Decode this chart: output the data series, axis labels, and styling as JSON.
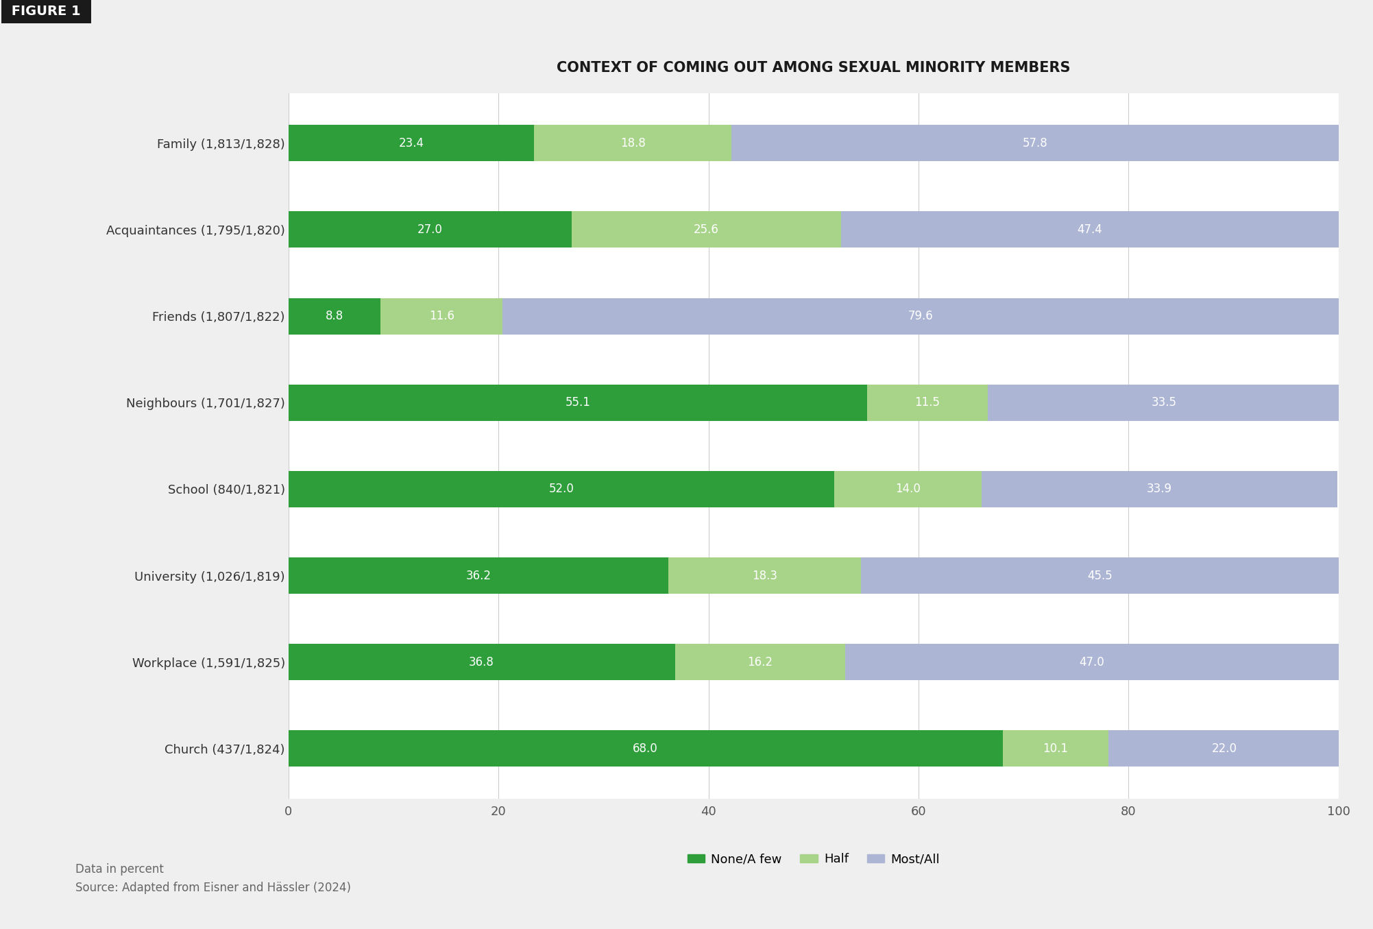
{
  "title": "CONTEXT OF COMING OUT AMONG SEXUAL MINORITY MEMBERS",
  "figure_label": "FIGURE 1",
  "categories": [
    "Family (1,813/1,828)",
    "Acquaintances (1,795/1,820)",
    "Friends (1,807/1,822)",
    "Neighbours (1,701/1,827)",
    "School (840/1,821)",
    "University (1,026/1,819)",
    "Workplace (1,591/1,825)",
    "Church (437/1,824)"
  ],
  "none_few": [
    23.4,
    27.0,
    8.8,
    55.1,
    52.0,
    36.2,
    36.8,
    68.0
  ],
  "half": [
    18.8,
    25.6,
    11.6,
    11.5,
    14.0,
    18.3,
    16.2,
    10.1
  ],
  "most_all": [
    57.8,
    47.4,
    79.6,
    33.5,
    33.9,
    45.5,
    47.0,
    22.0
  ],
  "color_none_few": "#2e9e3b",
  "color_half": "#a8d48a",
  "color_most_all": "#adb5d4",
  "legend_labels": [
    "None/A few",
    "Half",
    "Most/All"
  ],
  "footnote_line1": "Data in percent",
  "footnote_line2": "Source: Adapted from Eisner and Hässler (2024)",
  "xlim": [
    0,
    100
  ],
  "xticks": [
    0,
    20,
    40,
    60,
    80,
    100
  ],
  "outer_background_color": "#efefef",
  "plot_background_color": "#ffffff",
  "title_fontsize": 15,
  "label_fontsize": 13,
  "bar_label_fontsize": 12,
  "legend_fontsize": 13,
  "footnote_fontsize": 12,
  "figure_label_fontsize": 14,
  "bar_height": 0.42
}
